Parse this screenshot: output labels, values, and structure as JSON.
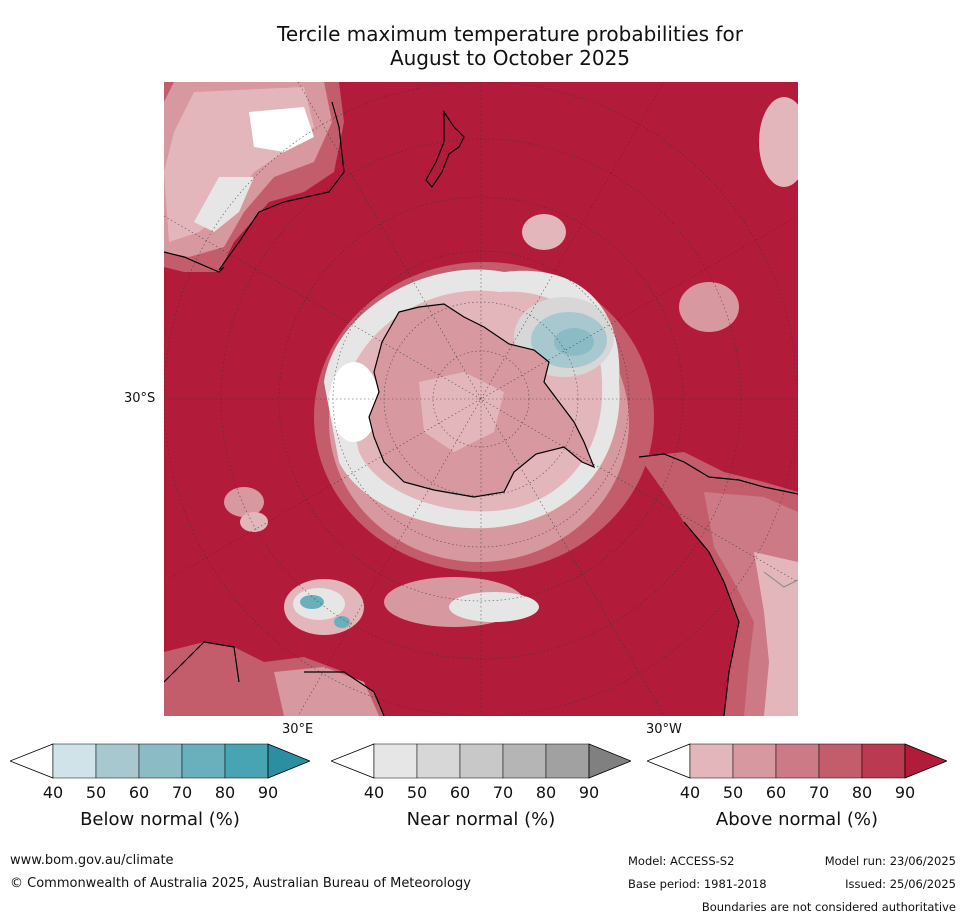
{
  "title": {
    "line1": "Tercile maximum temperature probabilities for",
    "line2": "August to October 2025"
  },
  "map": {
    "projection": "south-polar stereographic",
    "labels": {
      "lat": "30°S",
      "lon_east": "30°E",
      "lon_west": "30°W"
    },
    "colors": {
      "ocean_above_90": "#b31b3a",
      "land_outline": "#000000"
    }
  },
  "colorbars": [
    {
      "caption": "Below normal (%)",
      "ticks": [
        "40",
        "50",
        "60",
        "70",
        "80",
        "90"
      ],
      "colors": [
        "#ffffff",
        "#cfe3e9",
        "#a8c8cf",
        "#8bbcc5",
        "#6aafbc",
        "#48a3b2",
        "#2a8fa0"
      ]
    },
    {
      "caption": "Near normal (%)",
      "ticks": [
        "40",
        "50",
        "60",
        "70",
        "80",
        "90"
      ],
      "colors": [
        "#ffffff",
        "#e6e6e6",
        "#d7d7d7",
        "#c8c8c8",
        "#b5b5b5",
        "#a1a1a1",
        "#808080"
      ]
    },
    {
      "caption": "Above normal (%)",
      "ticks": [
        "40",
        "50",
        "60",
        "70",
        "80",
        "90"
      ],
      "colors": [
        "#ffffff",
        "#e3b6bb",
        "#d8989f",
        "#cc7a85",
        "#c35d6c",
        "#b93a51",
        "#b31b3a"
      ]
    }
  ],
  "footer": {
    "url": "www.bom.gov.au/climate",
    "copyright": "© Commonwealth of Australia 2025, Australian Bureau of Meteorology",
    "model": "Model: ACCESS-S2",
    "base_period": "Base period: 1981-2018",
    "model_run": "Model run: 23/06/2025",
    "issued": "Issued: 25/06/2025",
    "disclaimer": "Boundaries are not considered authoritative"
  }
}
